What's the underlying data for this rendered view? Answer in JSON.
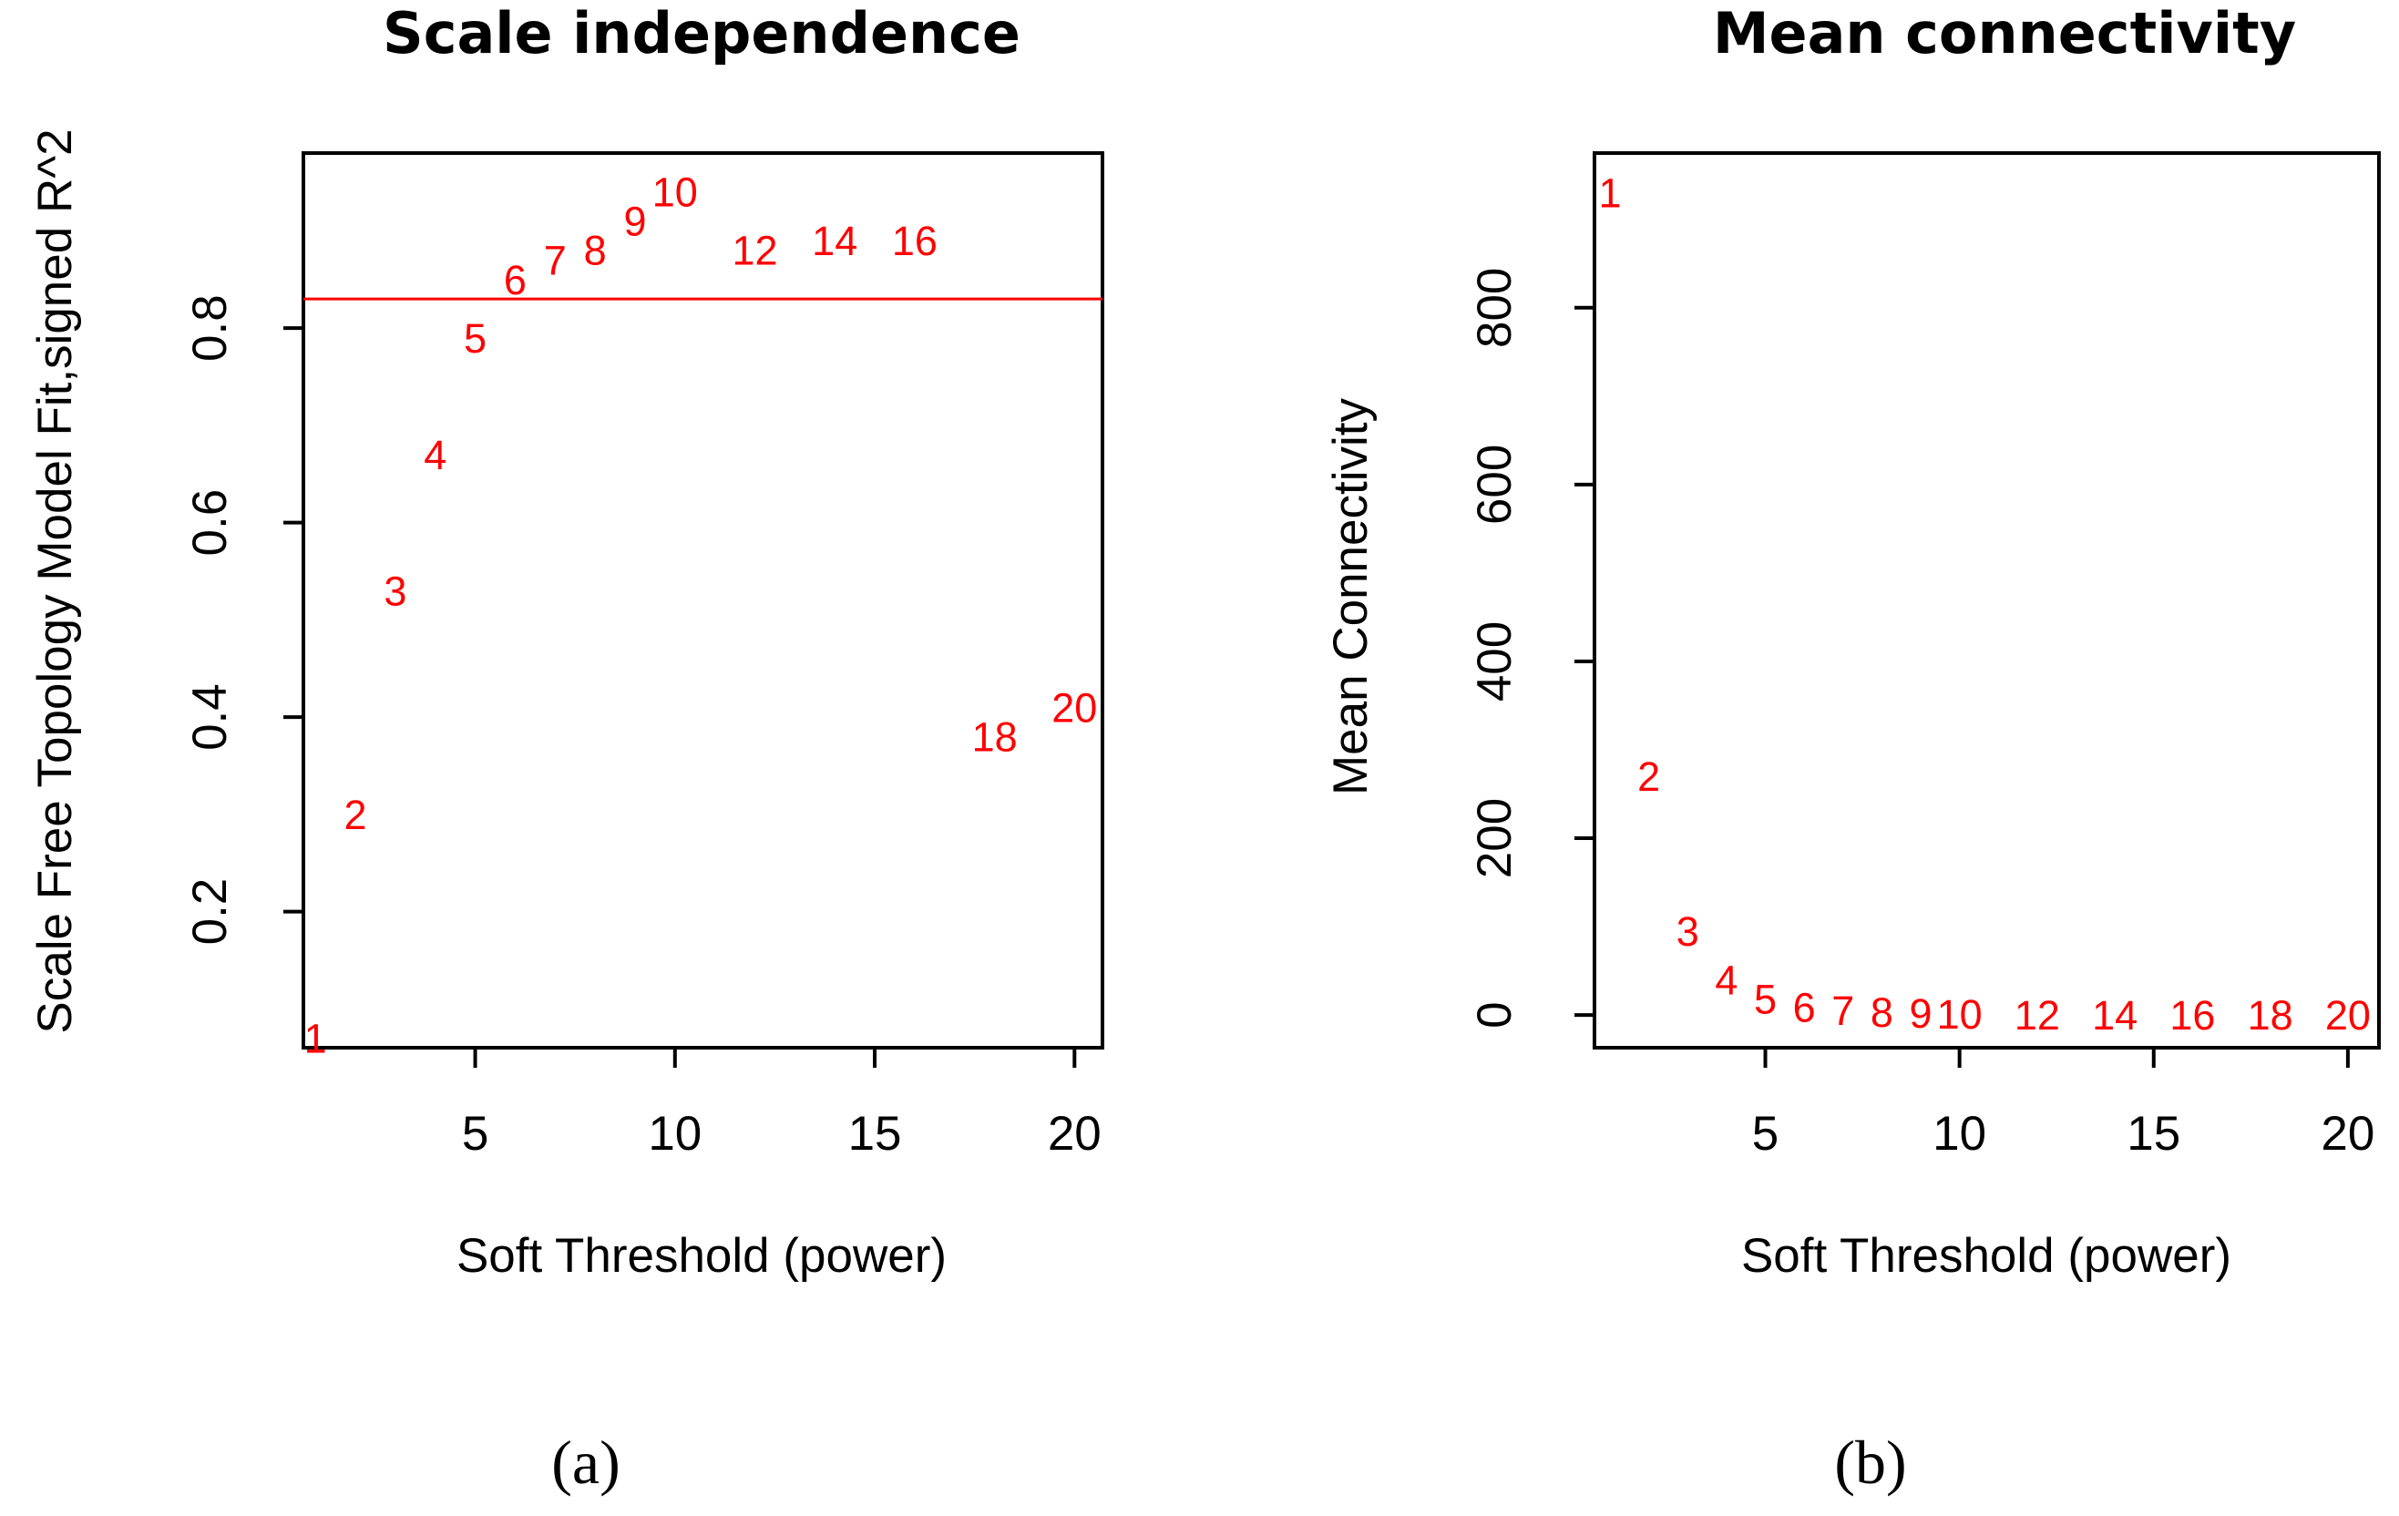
{
  "chart_data": [
    {
      "id": "a",
      "type": "scatter",
      "title": "Scale independence",
      "xlabel": "Soft Threshold (power)",
      "ylabel": "Scale Free Topology Model Fit,signed R^2",
      "caption": "(a)",
      "xlim": [
        0.7,
        20.7
      ],
      "ylim": [
        0.06,
        0.98
      ],
      "xticks": [
        5,
        10,
        15,
        20
      ],
      "yticks": [
        0.2,
        0.4,
        0.6,
        0.8
      ],
      "ytick_labels": [
        "0.2",
        "0.4",
        "0.6",
        "0.8"
      ],
      "reference_line_y": 0.83,
      "point_color": "#ff0000",
      "points": [
        {
          "x": 1,
          "y": 0.07,
          "label": "1"
        },
        {
          "x": 2,
          "y": 0.3,
          "label": "2"
        },
        {
          "x": 3,
          "y": 0.53,
          "label": "3"
        },
        {
          "x": 4,
          "y": 0.67,
          "label": "4"
        },
        {
          "x": 5,
          "y": 0.79,
          "label": "5"
        },
        {
          "x": 6,
          "y": 0.85,
          "label": "6"
        },
        {
          "x": 7,
          "y": 0.87,
          "label": "7"
        },
        {
          "x": 8,
          "y": 0.88,
          "label": "8"
        },
        {
          "x": 9,
          "y": 0.91,
          "label": "9"
        },
        {
          "x": 10,
          "y": 0.94,
          "label": "10"
        },
        {
          "x": 12,
          "y": 0.88,
          "label": "12"
        },
        {
          "x": 14,
          "y": 0.89,
          "label": "14"
        },
        {
          "x": 16,
          "y": 0.89,
          "label": "16"
        },
        {
          "x": 18,
          "y": 0.38,
          "label": "18"
        },
        {
          "x": 20,
          "y": 0.41,
          "label": "20"
        }
      ]
    },
    {
      "id": "b",
      "type": "scatter",
      "title": "Mean connectivity",
      "xlabel": "Soft Threshold (power)",
      "ylabel": "Mean Connectivity",
      "caption": "(b)",
      "xlim": [
        0.6,
        20.8
      ],
      "ylim": [
        -37,
        975
      ],
      "xticks": [
        5,
        10,
        15,
        20
      ],
      "yticks": [
        0,
        200,
        400,
        600,
        800
      ],
      "ytick_labels": [
        "0",
        "200",
        "400",
        "600",
        "800"
      ],
      "point_color": "#ff0000",
      "points": [
        {
          "x": 1,
          "y": 930,
          "label": "1"
        },
        {
          "x": 2,
          "y": 270,
          "label": "2"
        },
        {
          "x": 3,
          "y": 95,
          "label": "3"
        },
        {
          "x": 4,
          "y": 40,
          "label": "4"
        },
        {
          "x": 5,
          "y": 18,
          "label": "5"
        },
        {
          "x": 6,
          "y": 9,
          "label": "6"
        },
        {
          "x": 7,
          "y": 5,
          "label": "7"
        },
        {
          "x": 8,
          "y": 3,
          "label": "8"
        },
        {
          "x": 9,
          "y": 2,
          "label": "9"
        },
        {
          "x": 10,
          "y": 1,
          "label": "10"
        },
        {
          "x": 12,
          "y": 0,
          "label": "12"
        },
        {
          "x": 14,
          "y": 0,
          "label": "14"
        },
        {
          "x": 16,
          "y": 0,
          "label": "16"
        },
        {
          "x": 18,
          "y": 0,
          "label": "18"
        },
        {
          "x": 20,
          "y": 0,
          "label": "20"
        }
      ]
    }
  ]
}
